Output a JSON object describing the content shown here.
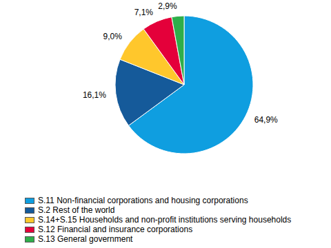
{
  "chart_data": {
    "type": "pie",
    "categories": [
      "S.11 Non-financial corporations and housing corporations",
      "S.2 Rest of the world",
      "S.14+S.15 Households and non-profit institutions serving households",
      "S.12 Financial and insurance corporations",
      "S.13 General government"
    ],
    "values": [
      64.9,
      16.1,
      9.0,
      7.1,
      2.9
    ],
    "value_labels": [
      "64,9%",
      "16,1%",
      "9,0%",
      "7,1%",
      "2,9%"
    ],
    "colors": [
      "#0f9ee0",
      "#155a9a",
      "#ffc72c",
      "#e4003a",
      "#2fae4a"
    ],
    "data_labels": true,
    "legend": "bottom"
  }
}
